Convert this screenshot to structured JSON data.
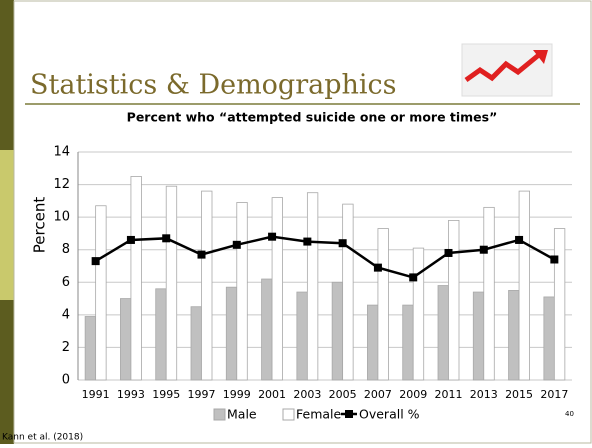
{
  "slide": {
    "title": "Statistics & Demographics",
    "footer": "Kann et al. (2018)",
    "page_number": "40"
  },
  "chart_data": {
    "type": "bar_line",
    "title": "Percent who “attempted suicide one or more times”",
    "ylabel": "Percent",
    "categories": [
      "1991",
      "1993",
      "1995",
      "1997",
      "1999",
      "2001",
      "2003",
      "2005",
      "2007",
      "2009",
      "2011",
      "2013",
      "2015",
      "2017"
    ],
    "series": [
      {
        "name": "Male",
        "color": "#c0c0c0",
        "values": [
          3.9,
          5.0,
          5.6,
          4.5,
          5.7,
          6.2,
          5.4,
          6.0,
          4.6,
          4.6,
          5.8,
          5.4,
          5.5,
          5.1
        ]
      },
      {
        "name": "Female",
        "color": "#ffffff",
        "values": [
          10.7,
          12.5,
          11.9,
          11.6,
          10.9,
          11.2,
          11.5,
          10.8,
          9.3,
          8.1,
          9.8,
          10.6,
          11.6,
          9.3
        ]
      },
      {
        "name": "Overall %",
        "color": "#000000",
        "type": "line",
        "values": [
          7.3,
          8.6,
          8.7,
          7.7,
          8.3,
          8.8,
          8.5,
          8.4,
          6.9,
          6.3,
          7.8,
          8.0,
          8.6,
          7.4
        ]
      }
    ],
    "ylim": [
      0,
      14
    ],
    "yticks": [
      0,
      2,
      4,
      6,
      8,
      10,
      12,
      14
    ],
    "grid": true,
    "legend": "bottom"
  }
}
